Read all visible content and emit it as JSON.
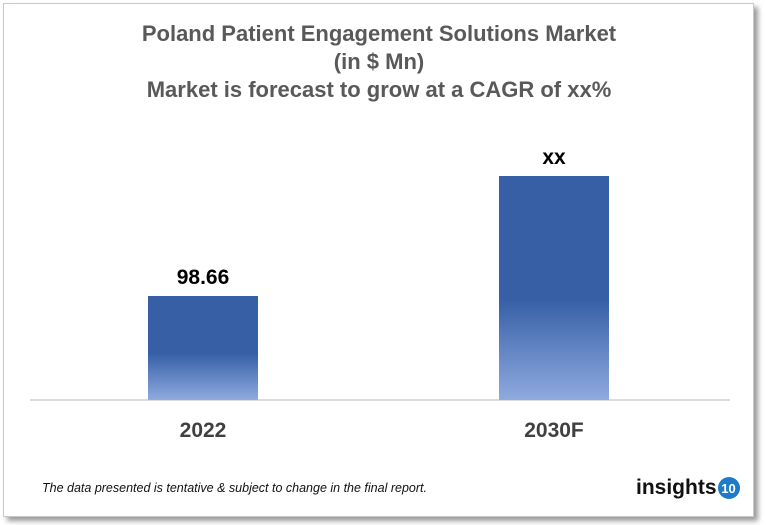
{
  "chart_data": {
    "type": "bar",
    "title_lines": [
      "Poland Patient Engagement Solutions Market",
      "(in $ Mn)",
      "Market is forecast to grow at a CAGR of xx%"
    ],
    "categories": [
      "2022",
      "2030F"
    ],
    "values": [
      98.66,
      null
    ],
    "data_labels": [
      "98.66",
      "xx"
    ],
    "xlabel": "",
    "ylabel": "",
    "grid": false,
    "bar_color_top": "#365fa6",
    "bar_color_bottom": "#8faadf"
  },
  "footer": {
    "note": "The data presented is tentative & subject to change in the final report."
  },
  "logo": {
    "text": "insights",
    "badge": "10",
    "badge_color": "#1f7bc8"
  }
}
